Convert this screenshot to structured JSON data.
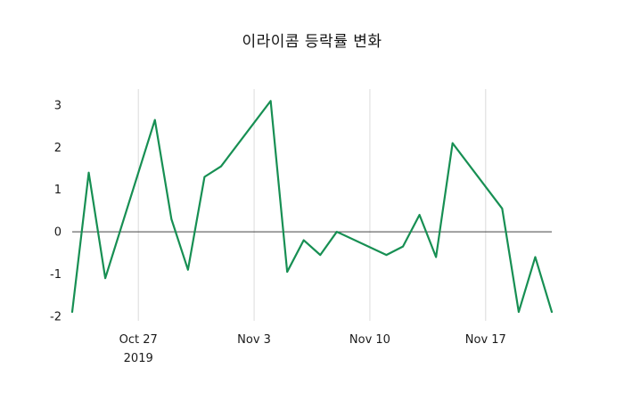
{
  "chart_data": {
    "type": "line",
    "title": "이라이콤 등락률 변화",
    "xlabel": "",
    "ylabel": "",
    "background": "#ffffff",
    "grid": "vertical-only",
    "zero_line": true,
    "colors": {
      "line": "#178f53",
      "gridline": "#dcdcdc",
      "zero_line": "#444444",
      "tick_text": "#1a1a1a"
    },
    "ylim": [
      -2.11,
      3.38
    ],
    "xlim": [
      "2019-10-23",
      "2019-11-21"
    ],
    "y_ticks": [
      -2,
      -1,
      0,
      1,
      2,
      3
    ],
    "x_ticks": [
      {
        "value": "2019-10-27",
        "label": "Oct 27",
        "sublabel": "2019"
      },
      {
        "value": "2019-11-03",
        "label": "Nov 3",
        "sublabel": ""
      },
      {
        "value": "2019-11-10",
        "label": "Nov 10",
        "sublabel": ""
      },
      {
        "value": "2019-11-17",
        "label": "Nov 17",
        "sublabel": ""
      }
    ],
    "series": [
      {
        "name": "등락률",
        "color": "#178f53",
        "x": [
          "2019-10-23",
          "2019-10-24",
          "2019-10-25",
          "2019-10-28",
          "2019-10-29",
          "2019-10-30",
          "2019-10-31",
          "2019-11-01",
          "2019-11-04",
          "2019-11-05",
          "2019-11-06",
          "2019-11-07",
          "2019-11-08",
          "2019-11-11",
          "2019-11-12",
          "2019-11-13",
          "2019-11-14",
          "2019-11-15",
          "2019-11-18",
          "2019-11-19",
          "2019-11-20",
          "2019-11-21"
        ],
        "values": [
          -1.9,
          1.4,
          -1.1,
          2.65,
          0.3,
          -0.9,
          1.3,
          1.55,
          3.1,
          -0.95,
          -0.2,
          -0.55,
          0.0,
          -0.55,
          -0.35,
          0.4,
          -0.6,
          2.1,
          0.55,
          -1.9,
          -0.6,
          -1.9
        ]
      }
    ]
  }
}
